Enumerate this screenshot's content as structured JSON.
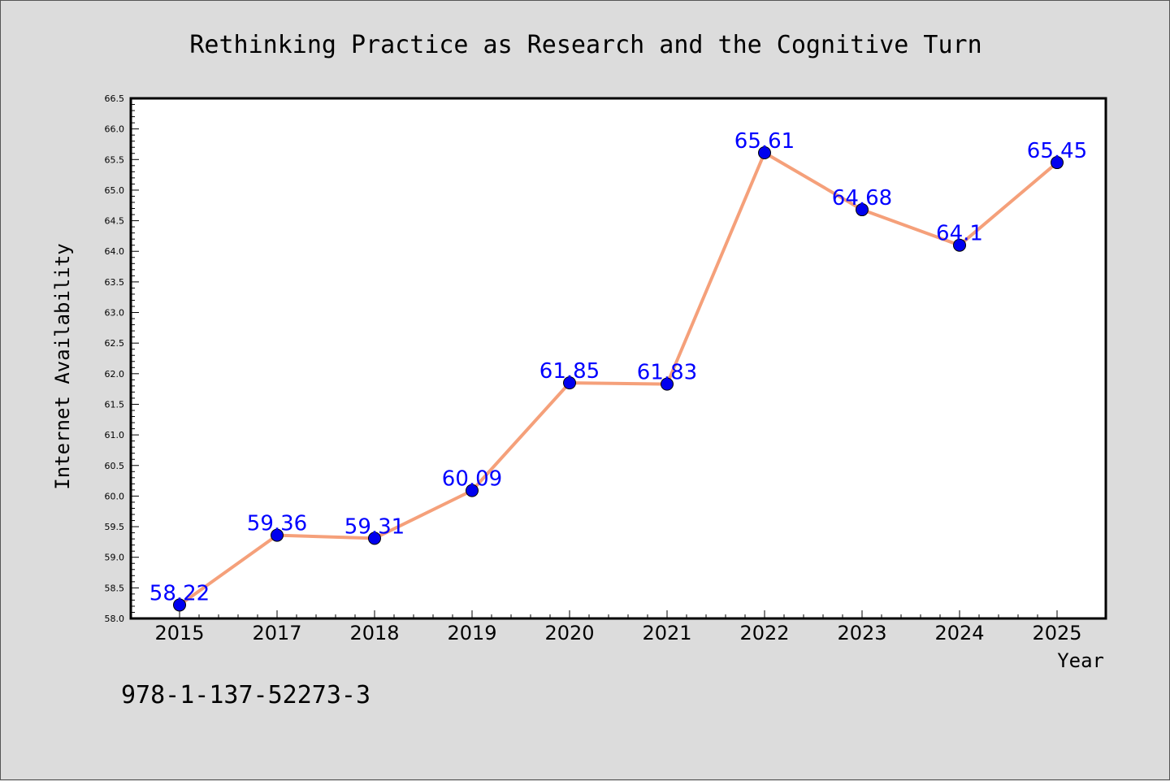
{
  "chart_data": {
    "type": "line",
    "title": "Rethinking Practice as Research and the Cognitive Turn",
    "xlabel": "Year",
    "ylabel": "Internet Availability",
    "categories": [
      "2015",
      "2017",
      "2018",
      "2019",
      "2020",
      "2021",
      "2022",
      "2023",
      "2024",
      "2025"
    ],
    "series": [
      {
        "values": [
          58.22,
          59.36,
          59.31,
          60.09,
          61.85,
          61.83,
          65.61,
          64.68,
          64.1,
          65.45
        ],
        "data_labels": [
          "58.22",
          "59.36",
          "59.31",
          "60.09",
          "61.85",
          "61.83",
          "65.61",
          "64.68",
          "64.1",
          "65.45"
        ],
        "line_color": "#f5a07a",
        "marker_color": "#0000ee"
      }
    ],
    "ylim": [
      58.0,
      66.5
    ],
    "yticks": [
      58.0,
      58.5,
      59.0,
      59.5,
      60.0,
      60.5,
      61.0,
      61.5,
      62.0,
      62.5,
      63.0,
      63.5,
      64.0,
      64.5,
      65.0,
      65.5,
      66.0,
      66.5
    ],
    "ytick_labels": [
      "58.0",
      "58.5",
      "59.0",
      "59.5",
      "60.0",
      "60.5",
      "61.0",
      "61.5",
      "62.0",
      "62.5",
      "63.0",
      "63.5",
      "64.0",
      "64.5",
      "65.0",
      "65.5",
      "66.0",
      "66.5"
    ],
    "grid": false,
    "legend": "none",
    "label_color": "#0000ff",
    "background_color": "#dcdcdc",
    "plot_background": "#ffffff"
  },
  "footer": {
    "isbn": "978-1-137-52273-3"
  }
}
